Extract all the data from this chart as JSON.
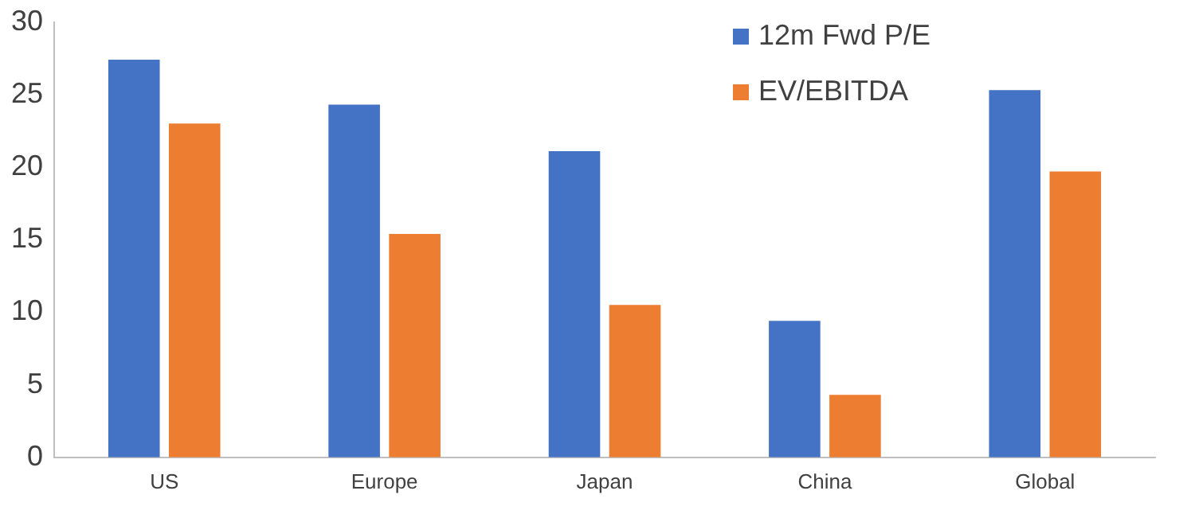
{
  "chart_data": {
    "type": "bar",
    "categories": [
      "US",
      "Europe",
      "Japan",
      "China",
      "Global"
    ],
    "series": [
      {
        "name": "12m Fwd P/E",
        "color": "#4472c4",
        "values": [
          27.4,
          24.3,
          21.1,
          9.4,
          25.3
        ]
      },
      {
        "name": "EV/EBITDA",
        "color": "#ed7d31",
        "values": [
          23.0,
          15.4,
          10.5,
          4.3,
          19.7
        ]
      }
    ],
    "ylim": [
      0,
      30
    ],
    "yticks": [
      0,
      5,
      10,
      15,
      20,
      25,
      30
    ],
    "grid": false,
    "legend": "top right"
  }
}
